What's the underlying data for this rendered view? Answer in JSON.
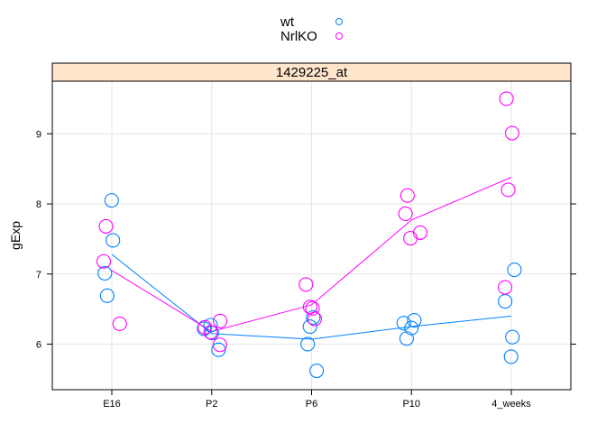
{
  "chart_data": {
    "type": "scatter",
    "panel_title": "1429225_at",
    "ylabel": "gExp",
    "xlabel": "",
    "categories": [
      "E16",
      "P2",
      "P6",
      "P10",
      "4_weeks"
    ],
    "y_ticks": [
      6,
      7,
      8,
      9
    ],
    "ylim": [
      5.35,
      9.75
    ],
    "grid": true,
    "legend_position": "top",
    "series": [
      {
        "name": "wt",
        "color": "#0080ff",
        "points": [
          {
            "x": "E16",
            "y": 8.05
          },
          {
            "x": "E16",
            "y": 7.48
          },
          {
            "x": "E16",
            "y": 7.01
          },
          {
            "x": "E16",
            "y": 6.69
          },
          {
            "x": "P2",
            "y": 6.27
          },
          {
            "x": "P2",
            "y": 6.16
          },
          {
            "x": "P2",
            "y": 6.22
          },
          {
            "x": "P2",
            "y": 5.92
          },
          {
            "x": "P6",
            "y": 6.38
          },
          {
            "x": "P6",
            "y": 6.25
          },
          {
            "x": "P6",
            "y": 6.0
          },
          {
            "x": "P6",
            "y": 5.62
          },
          {
            "x": "P10",
            "y": 6.34
          },
          {
            "x": "P10",
            "y": 6.3
          },
          {
            "x": "P10",
            "y": 6.23
          },
          {
            "x": "P10",
            "y": 6.08
          },
          {
            "x": "4_weeks",
            "y": 7.06
          },
          {
            "x": "4_weeks",
            "y": 6.61
          },
          {
            "x": "4_weeks",
            "y": 6.1
          },
          {
            "x": "4_weeks",
            "y": 5.82
          }
        ],
        "mean_line": [
          7.28,
          6.15,
          6.07,
          6.25,
          6.4
        ]
      },
      {
        "name": "NrlKO",
        "color": "#ff00ff",
        "points": [
          {
            "x": "E16",
            "y": 7.68
          },
          {
            "x": "E16",
            "y": 7.18
          },
          {
            "x": "E16",
            "y": 6.29
          },
          {
            "x": "P2",
            "y": 6.33
          },
          {
            "x": "P2",
            "y": 6.24
          },
          {
            "x": "P2",
            "y": 6.17
          },
          {
            "x": "P2",
            "y": 5.99
          },
          {
            "x": "P6",
            "y": 6.85
          },
          {
            "x": "P6",
            "y": 6.53
          },
          {
            "x": "P6",
            "y": 6.51
          },
          {
            "x": "P6",
            "y": 6.36
          },
          {
            "x": "P10",
            "y": 8.12
          },
          {
            "x": "P10",
            "y": 7.86
          },
          {
            "x": "P10",
            "y": 7.59
          },
          {
            "x": "P10",
            "y": 7.51
          },
          {
            "x": "4_weeks",
            "y": 9.5
          },
          {
            "x": "4_weeks",
            "y": 9.01
          },
          {
            "x": "4_weeks",
            "y": 8.2
          },
          {
            "x": "4_weeks",
            "y": 6.81
          }
        ],
        "mean_line": [
          7.05,
          6.18,
          6.56,
          7.77,
          8.38
        ]
      }
    ]
  },
  "style": {
    "strip_bg": "#ffe5cc",
    "grid_color": "#e6e6e6"
  }
}
